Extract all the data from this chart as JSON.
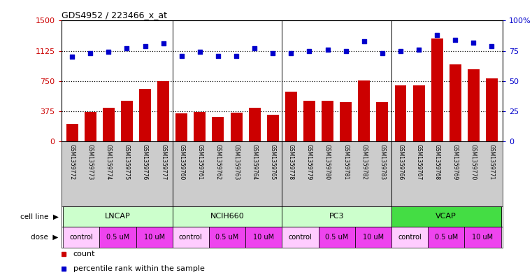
{
  "title": "GDS4952 / 223466_x_at",
  "samples": [
    "GSM1359772",
    "GSM1359773",
    "GSM1359774",
    "GSM1359775",
    "GSM1359776",
    "GSM1359777",
    "GSM1359760",
    "GSM1359761",
    "GSM1359762",
    "GSM1359763",
    "GSM1359764",
    "GSM1359765",
    "GSM1359778",
    "GSM1359779",
    "GSM1359780",
    "GSM1359781",
    "GSM1359782",
    "GSM1359783",
    "GSM1359766",
    "GSM1359767",
    "GSM1359768",
    "GSM1359769",
    "GSM1359770",
    "GSM1359771"
  ],
  "counts": [
    220,
    370,
    420,
    510,
    650,
    750,
    350,
    370,
    310,
    360,
    420,
    330,
    620,
    510,
    510,
    490,
    760,
    490,
    700,
    700,
    1280,
    960,
    900,
    780
  ],
  "percentiles": [
    70,
    73,
    74,
    77,
    79,
    81,
    71,
    74,
    71,
    71,
    77,
    73,
    73,
    75,
    76,
    75,
    83,
    73,
    75,
    76,
    88,
    84,
    82,
    79
  ],
  "group_boundaries": [
    6,
    12,
    18
  ],
  "cell_line_names": [
    "LNCAP",
    "NCIH660",
    "PC3",
    "VCAP"
  ],
  "cell_line_starts": [
    0,
    6,
    12,
    18
  ],
  "cell_line_ends": [
    6,
    12,
    18,
    24
  ],
  "cell_line_colors": [
    "#ccffcc",
    "#ccffcc",
    "#ccffcc",
    "#44dd44"
  ],
  "dose_labels": [
    "control",
    "0.5 uM",
    "10 uM",
    "control",
    "0.5 uM",
    "10 uM",
    "control",
    "0.5 uM",
    "10 uM",
    "control",
    "0.5 uM",
    "10 uM"
  ],
  "dose_colors": [
    "#ffccff",
    "#ee44ee",
    "#ee44ee",
    "#ffccff",
    "#ee44ee",
    "#ee44ee",
    "#ffccff",
    "#ee44ee",
    "#ee44ee",
    "#ffccff",
    "#ee44ee",
    "#ee44ee"
  ],
  "dose_starts": [
    0,
    2,
    4,
    6,
    8,
    10,
    12,
    14,
    16,
    18,
    20,
    22
  ],
  "dose_ends": [
    2,
    4,
    6,
    8,
    10,
    12,
    14,
    16,
    18,
    20,
    22,
    24
  ],
  "bar_color": "#cc0000",
  "dot_color": "#0000cc",
  "hlines": [
    375,
    750,
    1125
  ],
  "yticks_left": [
    0,
    375,
    750,
    1125,
    1500
  ],
  "yticks_right": [
    0,
    25,
    50,
    75,
    100
  ],
  "sample_bg": "#cccccc",
  "legend_items": [
    {
      "color": "#cc0000",
      "label": "count"
    },
    {
      "color": "#0000cc",
      "label": "percentile rank within the sample"
    }
  ]
}
